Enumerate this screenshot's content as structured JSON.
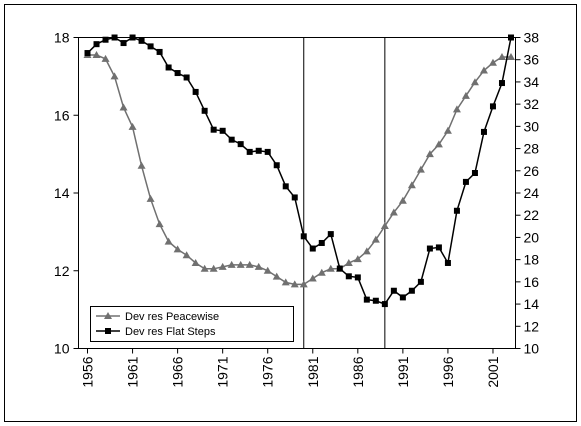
{
  "chart_data": {
    "type": "line",
    "x": [
      1956,
      1957,
      1958,
      1959,
      1960,
      1961,
      1962,
      1963,
      1964,
      1965,
      1966,
      1967,
      1968,
      1969,
      1970,
      1971,
      1972,
      1973,
      1974,
      1975,
      1976,
      1977,
      1978,
      1979,
      1980,
      1981,
      1982,
      1983,
      1984,
      1985,
      1986,
      1987,
      1988,
      1989,
      1990,
      1991,
      1992,
      1993,
      1994,
      1995,
      1996,
      1997,
      1998,
      1999,
      2000,
      2001,
      2002,
      2003
    ],
    "xlim": [
      1955,
      2003.5
    ],
    "xticks": [
      1956,
      1961,
      1966,
      1971,
      1976,
      1981,
      1986,
      1991,
      1996,
      2001
    ],
    "ylim": [
      10,
      18
    ],
    "yticks": [
      10,
      12,
      14,
      16,
      18
    ],
    "y2lim": [
      10,
      38
    ],
    "y2ticks": [
      10,
      12,
      14,
      16,
      18,
      20,
      22,
      24,
      26,
      28,
      30,
      32,
      34,
      36,
      38
    ],
    "reference_lines": [
      1980,
      1989
    ],
    "legend": "lower left",
    "series": [
      {
        "name": "Dev res Peacewise",
        "color": "#707070",
        "marker": "triangle",
        "values": [
          17.55,
          17.55,
          17.45,
          17.0,
          16.2,
          15.7,
          14.7,
          13.85,
          13.2,
          12.75,
          12.55,
          12.4,
          12.2,
          12.05,
          12.05,
          12.1,
          12.15,
          12.15,
          12.15,
          12.1,
          12.0,
          11.85,
          11.7,
          11.65,
          11.65,
          11.8,
          11.95,
          12.05,
          12.05,
          12.2,
          12.3,
          12.5,
          12.8,
          13.15,
          13.5,
          13.8,
          14.2,
          14.6,
          15.0,
          15.25,
          15.6,
          16.15,
          16.5,
          16.85,
          17.15,
          17.35,
          17.5,
          17.5
        ]
      },
      {
        "name": "Dev res Flat Steps",
        "color": "#000000",
        "marker": "square",
        "axis": "y2",
        "values": [
          36.6,
          37.4,
          37.8,
          38.0,
          37.5,
          38.0,
          37.7,
          37.2,
          36.7,
          35.3,
          34.8,
          34.4,
          33.1,
          31.4,
          29.7,
          29.6,
          28.8,
          28.4,
          27.7,
          27.8,
          27.7,
          26.5,
          24.6,
          23.6,
          20.1,
          19.0,
          19.5,
          20.3,
          17.2,
          16.5,
          16.4,
          14.4,
          14.3,
          14.0,
          15.2,
          14.6,
          15.2,
          16.0,
          19.0,
          19.1,
          17.7,
          22.4,
          25.0,
          25.8,
          29.5,
          31.8,
          33.9,
          38.0
        ]
      }
    ]
  }
}
